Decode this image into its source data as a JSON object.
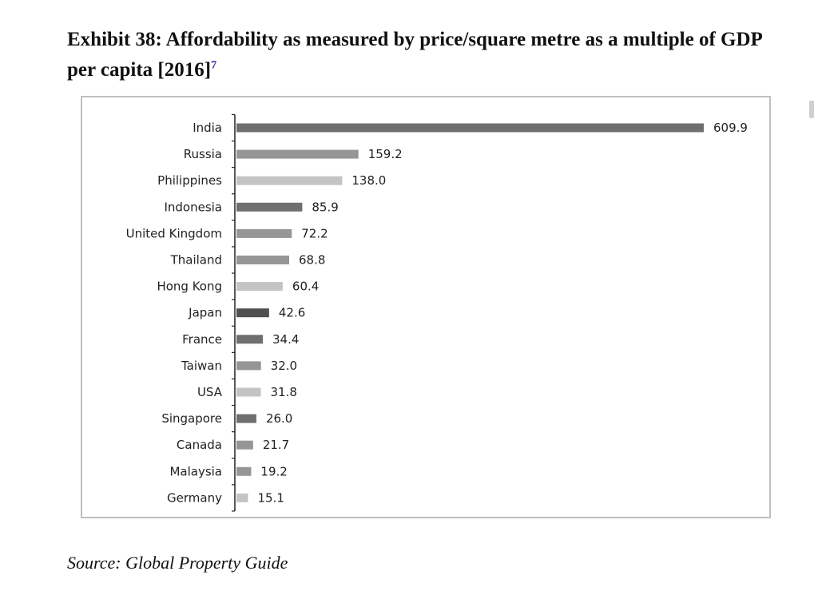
{
  "title": {
    "text": "Exhibit 38: Affordability as measured by price/square metre as a multiple of GDP per capita [2016]",
    "footnote": "7"
  },
  "source": "Source: Global Property Guide",
  "colors": {
    "dark": "#505050",
    "medium_dark": "#6f6f6f",
    "medium": "#969696",
    "light": "#c4c4c4",
    "axis": "#222222"
  },
  "chart_data": {
    "type": "bar",
    "orientation": "horizontal",
    "categories": [
      "India",
      "Russia",
      "Philippines",
      "Indonesia",
      "United Kingdom",
      "Thailand",
      "Hong Kong",
      "Japan",
      "France",
      "Taiwan",
      "USA",
      "Singapore",
      "Canada",
      "Malaysia",
      "Germany"
    ],
    "values": [
      609.9,
      159.2,
      138.0,
      85.9,
      72.2,
      68.8,
      60.4,
      42.6,
      34.4,
      32.0,
      31.8,
      26.0,
      21.7,
      19.2,
      15.1
    ],
    "value_labels": [
      "609.9",
      "159.2",
      "138.0",
      "85.9",
      "72.2",
      "68.8",
      "60.4",
      "42.6",
      "34.4",
      "32.0",
      "31.8",
      "26.0",
      "21.7",
      "19.2",
      "15.1"
    ],
    "bar_shades": [
      "medium_dark",
      "medium",
      "light",
      "medium_dark",
      "medium",
      "medium",
      "light",
      "dark",
      "medium_dark",
      "medium",
      "light",
      "medium_dark",
      "medium",
      "medium",
      "light"
    ],
    "title": "",
    "xlabel": "",
    "ylabel": "",
    "xlim": [
      0,
      609.9
    ],
    "grid": false,
    "legend": false,
    "data_labels": true
  }
}
